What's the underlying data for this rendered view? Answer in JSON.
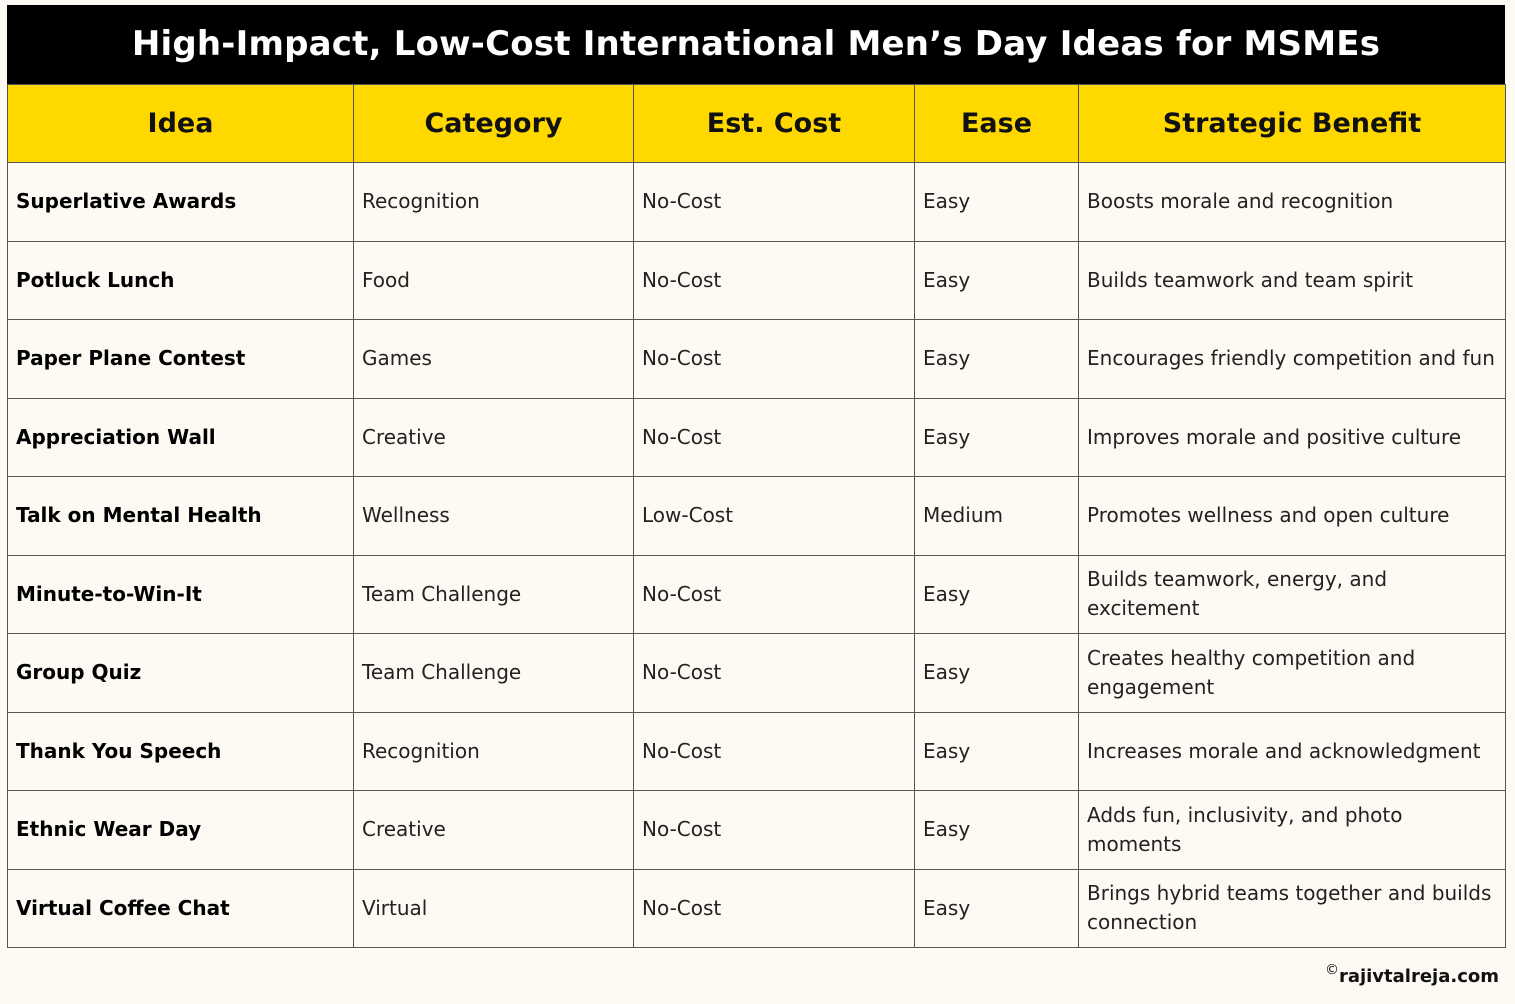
{
  "title": "High-Impact, Low-Cost International Men’s Day Ideas for MSMEs",
  "columns": [
    "Idea",
    "Category",
    "Est. Cost",
    "Ease",
    "Strategic Benefit"
  ],
  "rows": [
    [
      "Superlative Awards",
      "Recognition",
      "No-Cost",
      "Easy",
      "Boosts morale and recognition"
    ],
    [
      "Potluck Lunch",
      "Food",
      "No-Cost",
      "Easy",
      "Builds teamwork and team spirit"
    ],
    [
      "Paper Plane Contest",
      "Games",
      "No-Cost",
      "Easy",
      "Encourages friendly competition and fun"
    ],
    [
      "Appreciation Wall",
      "Creative",
      "No-Cost",
      "Easy",
      "Improves morale and positive culture"
    ],
    [
      "Talk on Mental Health",
      "Wellness",
      "Low-Cost",
      "Medium",
      "Promotes wellness and open culture"
    ],
    [
      "Minute-to-Win-It",
      "Team Challenge",
      "No-Cost",
      "Easy",
      "Builds teamwork, energy, and excitement"
    ],
    [
      "Group Quiz",
      "Team Challenge",
      "No-Cost",
      "Easy",
      "Creates healthy competition and engagement"
    ],
    [
      "Thank You Speech",
      "Recognition",
      "No-Cost",
      "Easy",
      "Increases morale and acknowledgment"
    ],
    [
      "Ethnic Wear Day",
      "Creative",
      "No-Cost",
      "Easy",
      "Adds fun, inclusivity, and photo moments"
    ],
    [
      "Virtual Coffee Chat",
      "Virtual",
      "No-Cost",
      "Easy",
      "Brings hybrid teams together and builds connection"
    ]
  ],
  "footer": {
    "copyright_symbol": "©",
    "site": "rajivtalreja.com"
  },
  "colors": {
    "title_bg": "#000000",
    "header_bg": "#ffd800",
    "page_bg": "#fdfaf3"
  }
}
